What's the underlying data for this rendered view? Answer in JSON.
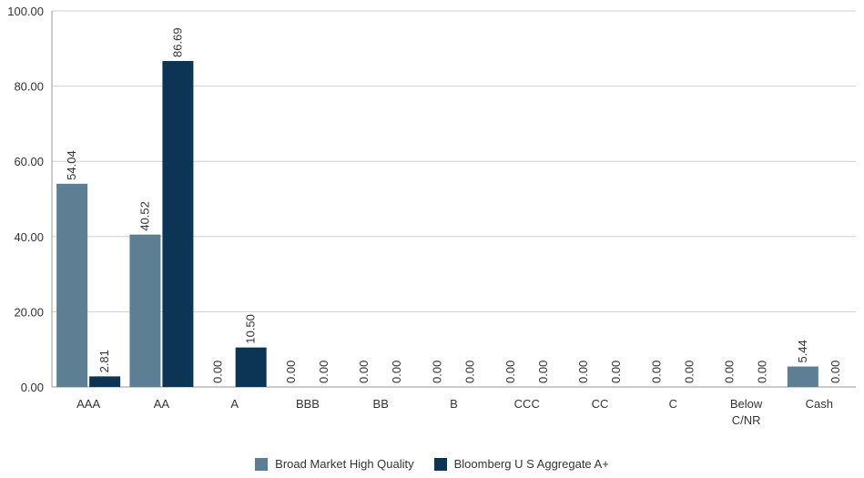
{
  "chart_data": {
    "type": "bar",
    "categories": [
      "AAA",
      "AA",
      "A",
      "BBB",
      "BB",
      "B",
      "CCC",
      "CC",
      "C",
      "Below C/NR",
      "Cash"
    ],
    "series": [
      {
        "name": "Broad Market High Quality",
        "color": "#5d7f93",
        "values": [
          54.04,
          40.52,
          0.0,
          0.0,
          0.0,
          0.0,
          0.0,
          0.0,
          0.0,
          0.0,
          5.44
        ]
      },
      {
        "name": "Bloomberg U S Aggregate A+",
        "color": "#0c3455",
        "values": [
          2.81,
          86.69,
          10.5,
          0.0,
          0.0,
          0.0,
          0.0,
          0.0,
          0.0,
          0.0,
          0.0
        ]
      }
    ],
    "ylim": [
      0,
      100
    ],
    "yticks": [
      "0.00",
      "20.00",
      "40.00",
      "60.00",
      "80.00",
      "100.00"
    ],
    "grid": true,
    "legend_position": "bottom"
  }
}
